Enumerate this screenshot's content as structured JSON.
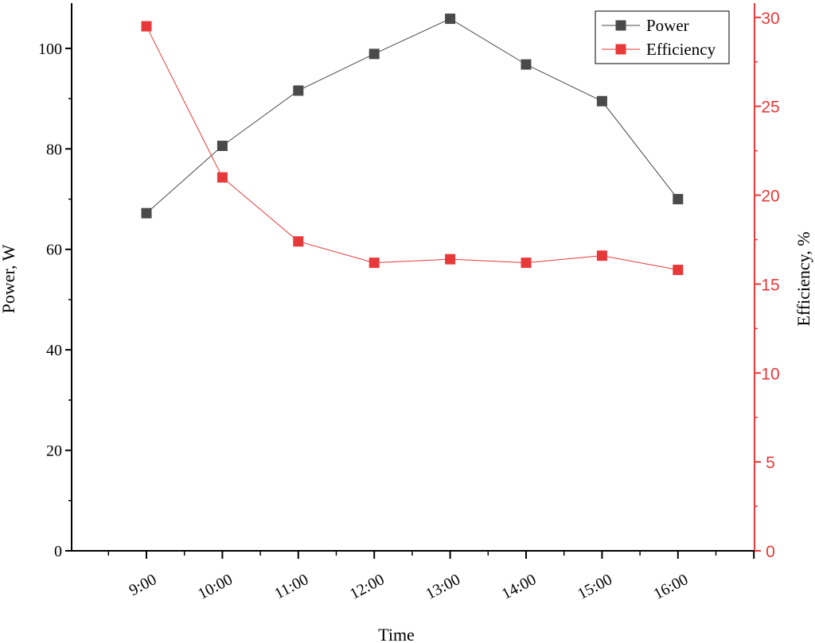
{
  "chart_data": {
    "type": "line",
    "xlabel": "Time",
    "categories": [
      "9:00",
      "10:00",
      "11:00",
      "12:00",
      "13:00",
      "14:00",
      "15:00",
      "16:00"
    ],
    "series": [
      {
        "name": "Power",
        "axis": "left",
        "color": "#4a4a4a",
        "marker": "square",
        "values": [
          67.2,
          80.6,
          91.6,
          98.9,
          105.9,
          96.8,
          89.5,
          70.0
        ]
      },
      {
        "name": "Efficiency",
        "axis": "right",
        "color": "#e8393a",
        "marker": "square",
        "values": [
          29.5,
          21.0,
          17.4,
          16.2,
          16.4,
          16.2,
          16.6,
          15.8
        ]
      }
    ],
    "y_left": {
      "label": "Power, W",
      "ylim": [
        0,
        109
      ],
      "ticks": [
        "0",
        "20",
        "40",
        "60",
        "80",
        "100"
      ],
      "color": "#000000"
    },
    "y_right": {
      "label": "Efficiency, %",
      "ylim": [
        0,
        30.8
      ],
      "ticks": [
        "0",
        "5",
        "10",
        "15",
        "20",
        "25",
        "30"
      ],
      "color": "#e8393a"
    },
    "grid": false,
    "legend": "top-right"
  }
}
